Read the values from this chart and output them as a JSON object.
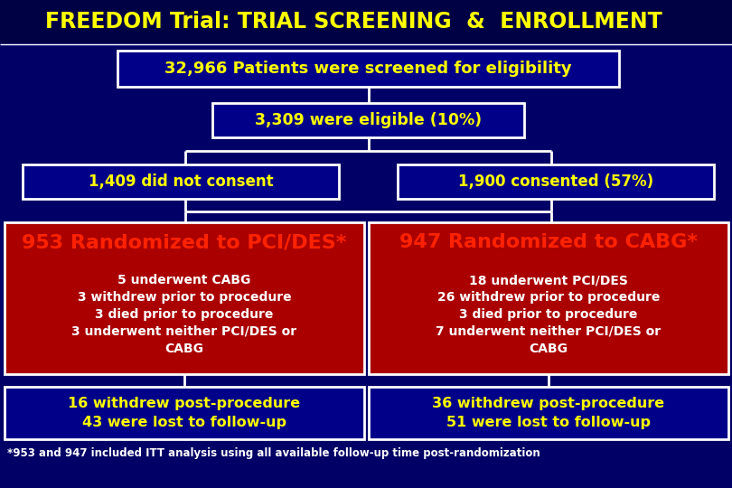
{
  "title": "FREEDOM Trial: TRIAL SCREENING  &  ENROLLMENT",
  "title_color": "#FFFF00",
  "bg_color": "#000066",
  "header_bg": "#000055",
  "box_border_color": "#FFFFFF",
  "box1_text": "32,966 Patients were screened for eligibility",
  "box2_text": "3,309 were eligible (10%)",
  "box3_left_text": "1,409 did not consent",
  "box3_right_text": "1,900 consented (57%)",
  "box4_left_title": "953 Randomized to PCI/DES*",
  "box4_right_title": "947 Randomized to CABG*",
  "box4_left_body": "5 underwent CABG\n3 withdrew prior to procedure\n3 died prior to procedure\n3 underwent neither PCI/DES or\nCABG",
  "box4_right_body": "18 underwent PCI/DES\n26 withdrew prior to procedure\n3 died prior to procedure\n7 underwent neither PCI/DES or\nCABG",
  "box5_left_text": "16 withdrew post-procedure\n43 were lost to follow-up",
  "box5_right_text": "36 withdrew post-procedure\n51 were lost to follow-up",
  "footnote": "*953 and 947 included ITT analysis using all available follow-up time post-randomization",
  "yellow": "#FFFF00",
  "red": "#FF2200",
  "white": "#FFFFFF",
  "dark_blue": "#000088",
  "box_red_bg": "#AA0000",
  "header_dark": "#000044"
}
